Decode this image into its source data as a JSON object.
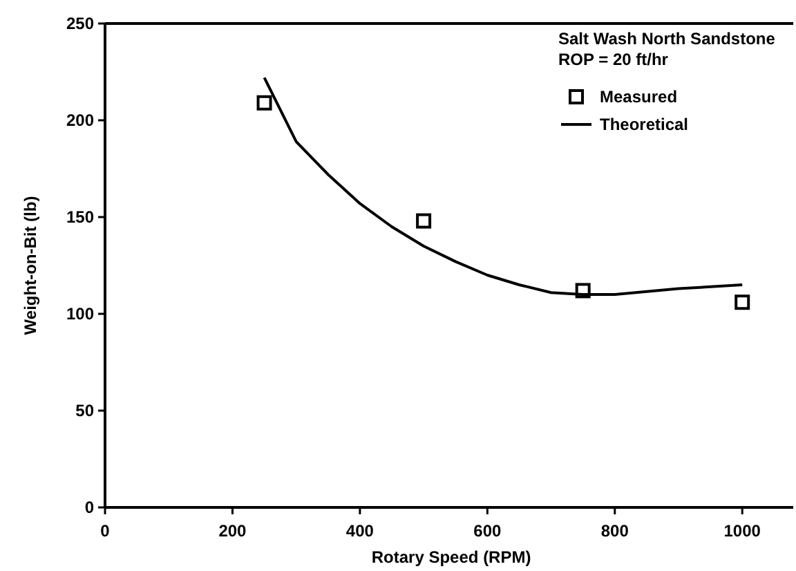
{
  "chart_data": {
    "type": "scatter",
    "xlabel": "Rotary Speed (RPM)",
    "ylabel": "Weight-on-Bit (lb)",
    "annotations": [
      "Salt Wash North Sandstone",
      "ROP = 20 ft/hr"
    ],
    "xlim": [
      0,
      1080
    ],
    "xticks": [
      0,
      200,
      400,
      600,
      800,
      1000
    ],
    "ylim": [
      0,
      250
    ],
    "yticks": [
      0,
      50,
      100,
      150,
      200,
      250
    ],
    "grid": false,
    "legend": "top right",
    "series": [
      {
        "name": "Measured",
        "marker": "square",
        "color": "#000000",
        "x": [
          250,
          500,
          750,
          1000
        ],
        "values": [
          209,
          148,
          112,
          106
        ]
      },
      {
        "name": "Theoretical",
        "type": "line",
        "marker": "none",
        "line_style": "solid",
        "color": "#000000",
        "x": [
          250,
          300,
          350,
          400,
          450,
          500,
          550,
          600,
          650,
          700,
          750,
          800,
          900,
          1000
        ],
        "values": [
          222,
          189,
          172,
          157,
          145,
          135,
          127,
          120,
          115,
          111,
          110,
          110,
          113,
          115
        ]
      }
    ]
  }
}
